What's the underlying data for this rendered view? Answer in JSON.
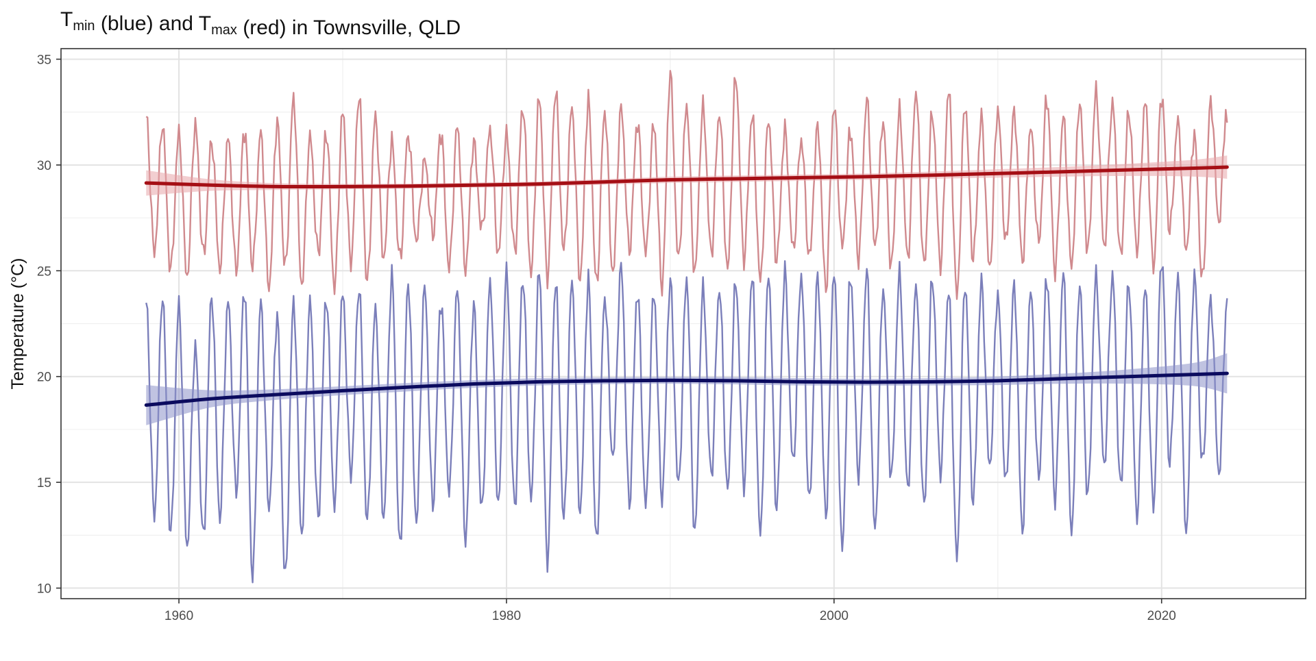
{
  "chart_data": {
    "type": "line",
    "title": {
      "parts": [
        {
          "text": "T",
          "sub": "min"
        },
        {
          "text": " (blue) and T",
          "sub": "max"
        },
        {
          "text": " (red) in Townsville, QLD"
        }
      ]
    },
    "xlabel": "",
    "ylabel": "Temperature (°C)",
    "xlim": [
      1952.8,
      2028.8
    ],
    "ylim": [
      9.5,
      35.5
    ],
    "x_ticks": [
      1960,
      1980,
      2000,
      2020
    ],
    "x_minor_ticks": [
      1970,
      1990,
      2010
    ],
    "y_ticks": [
      10,
      15,
      20,
      25,
      30,
      35
    ],
    "y_minor_ticks": [
      12.5,
      17.5,
      22.5,
      27.5,
      32.5
    ],
    "grid": true,
    "series_style": {
      "tmax_color": "#d08a8e",
      "tmax_trend_color": "#a50f15",
      "tmax_ribbon_color": "#e7a5a9",
      "tmin_color": "#7b7fba",
      "tmin_trend_color": "#0b0b5e",
      "tmin_ribbon_color": "#8d92c9"
    },
    "series": [
      {
        "key": "tmax",
        "seasonal_cycle": {
          "start_year": 1957.75,
          "end_year": 2024.0,
          "samples_per_year": 12,
          "peak_month_offset": 0.0,
          "notes": "monthly mean Tmax"
        },
        "seasonal_extremes": {
          "years": [
            1958,
            1959,
            1960,
            1961,
            1962,
            1963,
            1964,
            1965,
            1966,
            1967,
            1968,
            1969,
            1970,
            1971,
            1972,
            1973,
            1974,
            1975,
            1976,
            1977,
            1978,
            1979,
            1980,
            1981,
            1982,
            1983,
            1984,
            1985,
            1986,
            1987,
            1988,
            1989,
            1990,
            1991,
            1992,
            1993,
            1994,
            1995,
            1996,
            1997,
            1998,
            1999,
            2000,
            2001,
            2002,
            2003,
            2004,
            2005,
            2006,
            2007,
            2008,
            2009,
            2010,
            2011,
            2012,
            2013,
            2014,
            2015,
            2016,
            2017,
            2018,
            2019,
            2020,
            2021,
            2022,
            2023
          ],
          "summer_peak": [
            32.3,
            31.8,
            31.5,
            31.9,
            31.2,
            31.3,
            31.6,
            31.5,
            32.0,
            33.2,
            31.4,
            31.6,
            32.5,
            33.2,
            32.3,
            31.1,
            31.5,
            30.3,
            31.5,
            31.8,
            31.0,
            31.7,
            31.5,
            32.8,
            33.2,
            33.4,
            32.7,
            33.0,
            32.6,
            32.8,
            32.0,
            31.9,
            34.2,
            32.8,
            32.8,
            32.5,
            34.2,
            32.3,
            32.1,
            31.6,
            31.2,
            31.9,
            32.8,
            31.6,
            33.0,
            32.0,
            32.6,
            33.5,
            32.5,
            33.5,
            32.8,
            32.2,
            32.6,
            32.6,
            31.8,
            33.2,
            32.2,
            32.9,
            33.5,
            33.0,
            32.6,
            33.0,
            33.2,
            32.0,
            31.4,
            33.1
          ],
          "winter_trough": [
            25.9,
            25.0,
            24.7,
            25.7,
            25.1,
            25.0,
            25.2,
            24.2,
            25.1,
            24.3,
            25.8,
            24.2,
            25.4,
            24.4,
            25.6,
            25.5,
            26.4,
            26.7,
            25.1,
            25.1,
            26.9,
            25.8,
            25.9,
            24.8,
            24.7,
            25.9,
            24.6,
            24.3,
            24.8,
            26.0,
            25.8,
            24.3,
            25.5,
            24.9,
            25.8,
            25.0,
            25.6,
            24.5,
            25.5,
            26.0,
            25.6,
            24.2,
            26.1,
            25.6,
            26.1,
            25.2,
            25.6,
            25.2,
            25.3,
            23.8,
            25.6,
            25.1,
            26.3,
            25.5,
            26.3,
            25.0,
            25.2,
            25.9,
            26.1,
            25.6,
            26.0,
            25.1,
            26.9,
            26.0,
            24.5,
            27.3
          ]
        },
        "trend": {
          "x": [
            1958,
            1962,
            1966,
            1970,
            1974,
            1978,
            1982,
            1986,
            1990,
            1994,
            1998,
            2002,
            2006,
            2010,
            2014,
            2018,
            2022,
            2024
          ],
          "y": [
            29.15,
            29.05,
            28.98,
            28.98,
            29.0,
            29.05,
            29.1,
            29.2,
            29.3,
            29.35,
            29.4,
            29.45,
            29.52,
            29.6,
            29.68,
            29.77,
            29.85,
            29.9
          ],
          "ci_low": [
            28.55,
            28.78,
            28.82,
            28.85,
            28.88,
            28.93,
            28.98,
            29.07,
            29.15,
            29.2,
            29.25,
            29.3,
            29.35,
            29.4,
            29.45,
            29.48,
            29.45,
            29.35
          ],
          "ci_high": [
            29.75,
            29.32,
            29.14,
            29.11,
            29.12,
            29.17,
            29.22,
            29.33,
            29.45,
            29.5,
            29.55,
            29.6,
            29.69,
            29.8,
            29.91,
            30.06,
            30.25,
            30.45
          ]
        }
      },
      {
        "key": "tmin",
        "seasonal_cycle": {
          "start_year": 1957.75,
          "end_year": 2024.0,
          "samples_per_year": 12,
          "peak_month_offset": 0.0,
          "notes": "monthly mean Tmin"
        },
        "seasonal_extremes": {
          "years": [
            1958,
            1959,
            1960,
            1961,
            1962,
            1963,
            1964,
            1965,
            1966,
            1967,
            1968,
            1969,
            1970,
            1971,
            1972,
            1973,
            1974,
            1975,
            1976,
            1977,
            1978,
            1979,
            1980,
            1981,
            1982,
            1983,
            1984,
            1985,
            1986,
            1987,
            1988,
            1989,
            1990,
            1991,
            1992,
            1993,
            1994,
            1995,
            1996,
            1997,
            1998,
            1999,
            2000,
            2001,
            2002,
            2003,
            2004,
            2005,
            2006,
            2007,
            2008,
            2009,
            2010,
            2011,
            2012,
            2013,
            2014,
            2015,
            2016,
            2017,
            2018,
            2019,
            2020,
            2021,
            2022,
            2023
          ],
          "summer_peak": [
            23.5,
            23.7,
            23.4,
            21.4,
            23.9,
            23.6,
            24.1,
            23.5,
            22.8,
            23.6,
            23.6,
            23.8,
            23.9,
            24.1,
            23.2,
            24.8,
            24.5,
            24.3,
            23.5,
            24.1,
            23.3,
            24.5,
            25.0,
            24.7,
            25.0,
            24.4,
            24.5,
            24.5,
            23.8,
            25.3,
            24.0,
            23.9,
            24.4,
            24.6,
            24.2,
            24.2,
            24.5,
            24.7,
            24.8,
            24.9,
            24.8,
            24.8,
            25.0,
            24.8,
            24.9,
            24.1,
            24.9,
            24.4,
            24.7,
            24.0,
            24.3,
            24.4,
            23.9,
            24.4,
            24.1,
            24.7,
            24.8,
            24.3,
            24.8,
            24.8,
            24.5,
            24.2,
            25.5,
            24.6,
            24.8,
            23.7
          ],
          "winter_trough": [
            13.4,
            12.5,
            11.9,
            12.3,
            13.3,
            14.5,
            10.5,
            13.8,
            10.4,
            12.5,
            13.2,
            13.9,
            15.4,
            13.1,
            13.3,
            11.8,
            13.1,
            13.9,
            14.5,
            12.3,
            13.6,
            14.0,
            13.8,
            14.2,
            11.3,
            13.2,
            13.6,
            12.1,
            16.1,
            14.0,
            13.9,
            14.3,
            14.8,
            12.6,
            15.3,
            14.6,
            14.9,
            12.5,
            13.8,
            15.9,
            14.1,
            13.5,
            11.8,
            15.4,
            12.7,
            15.2,
            14.7,
            13.8,
            15.5,
            11.4,
            14.1,
            15.7,
            14.9,
            12.7,
            15.1,
            14.2,
            12.6,
            14.3,
            15.8,
            14.7,
            13.4,
            13.8,
            15.9,
            12.6,
            15.8,
            15.4
          ]
        },
        "trend": {
          "x": [
            1958,
            1962,
            1966,
            1970,
            1974,
            1978,
            1982,
            1986,
            1990,
            1994,
            1998,
            2002,
            2006,
            2010,
            2014,
            2018,
            2022,
            2024
          ],
          "y": [
            18.65,
            18.95,
            19.15,
            19.33,
            19.5,
            19.65,
            19.75,
            19.8,
            19.82,
            19.8,
            19.75,
            19.73,
            19.75,
            19.8,
            19.9,
            20.0,
            20.1,
            20.15
          ],
          "ci_low": [
            17.7,
            18.55,
            18.9,
            19.12,
            19.3,
            19.47,
            19.58,
            19.64,
            19.66,
            19.63,
            19.58,
            19.57,
            19.58,
            19.6,
            19.66,
            19.66,
            19.55,
            19.2
          ],
          "ci_high": [
            19.6,
            19.35,
            19.4,
            19.54,
            19.7,
            19.83,
            19.92,
            19.96,
            19.98,
            19.97,
            19.92,
            19.89,
            19.92,
            20.0,
            20.14,
            20.34,
            20.65,
            21.1
          ]
        }
      }
    ]
  }
}
